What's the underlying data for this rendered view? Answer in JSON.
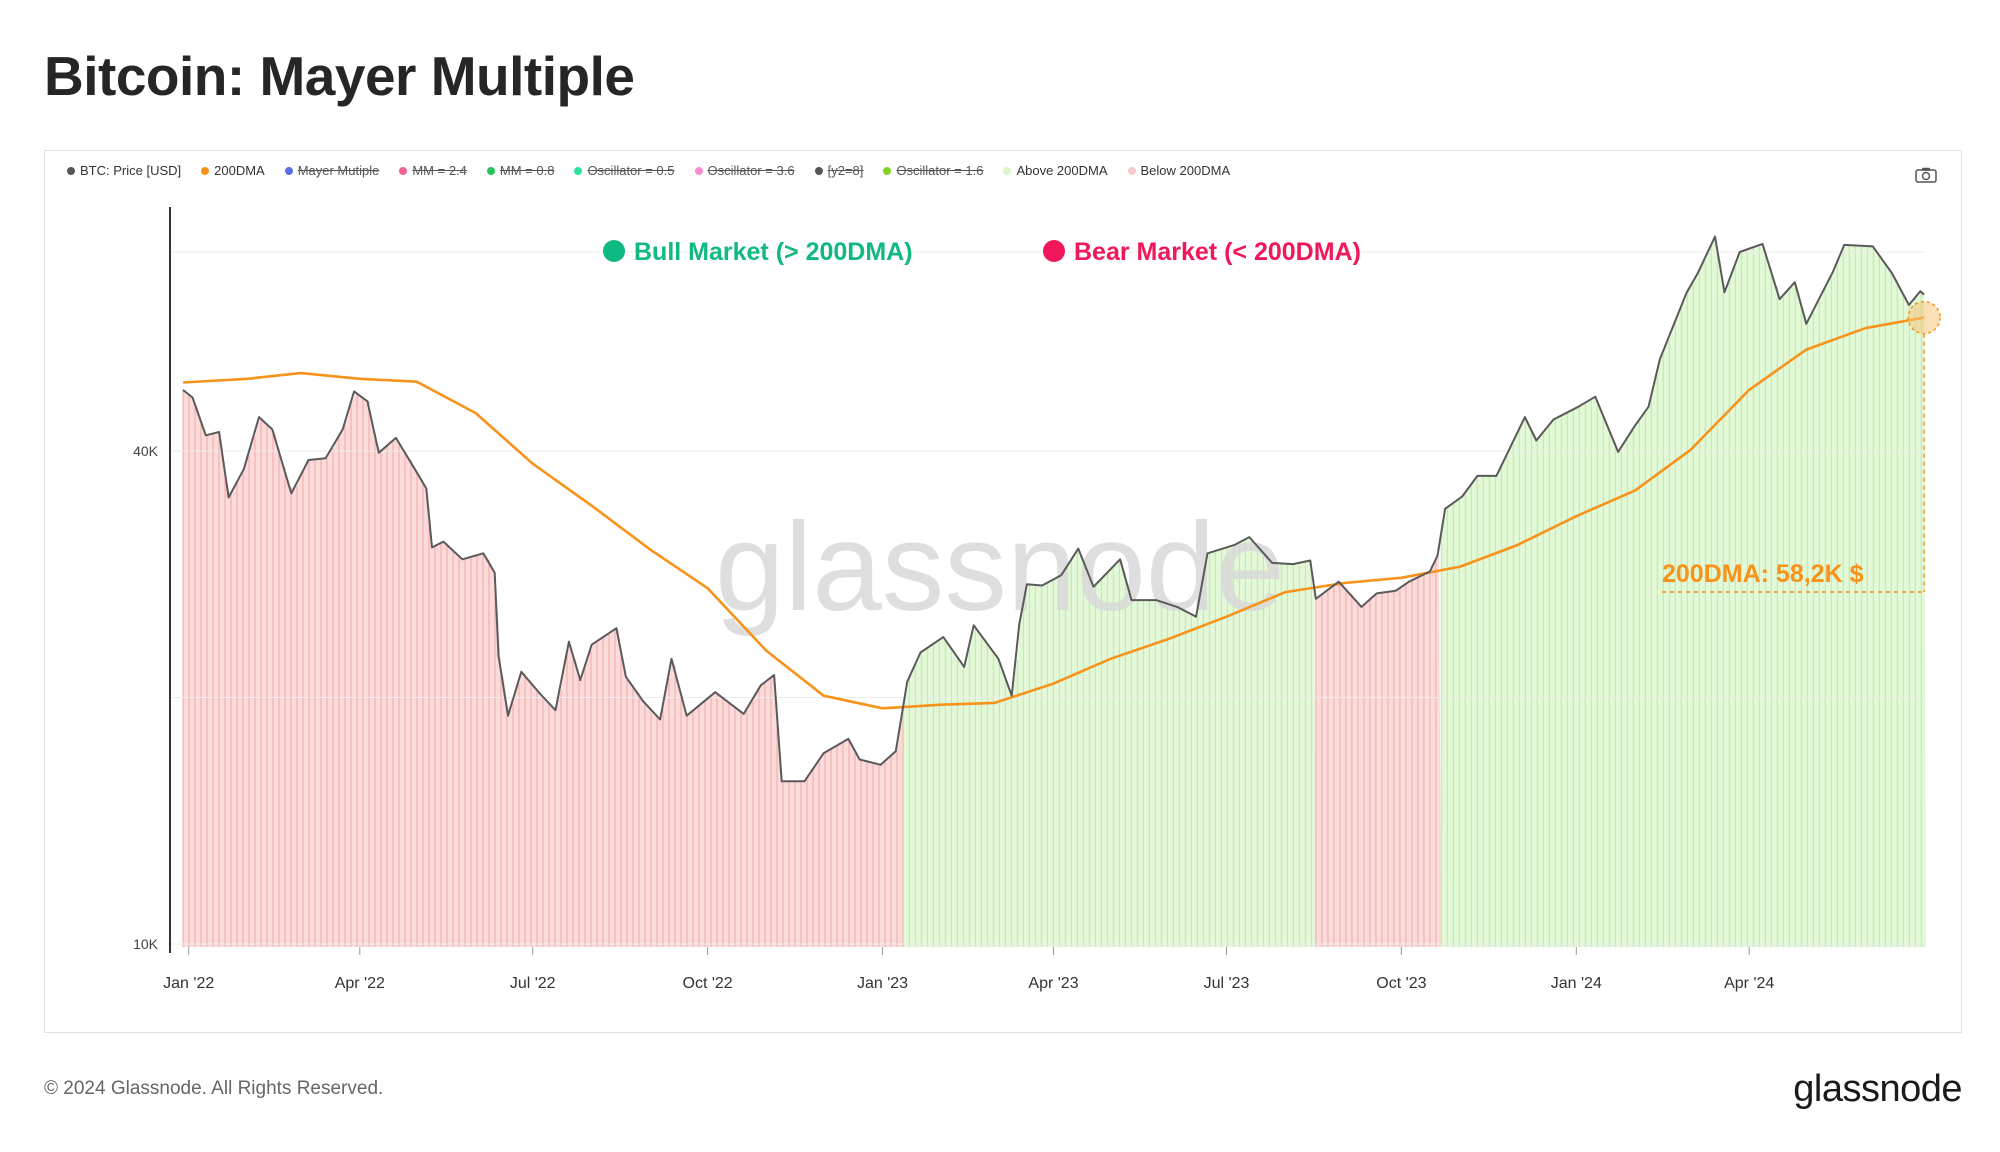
{
  "title": "Bitcoin: Mayer Multiple",
  "legend": [
    {
      "label": "BTC: Price [USD]",
      "color": "#555555",
      "enabled": true
    },
    {
      "label": "200DMA",
      "color": "#f7931a",
      "enabled": true
    },
    {
      "label": "Mayer Mutiple",
      "color": "#5b6ee1",
      "enabled": false
    },
    {
      "label": "MM = 2.4",
      "color": "#f06292",
      "enabled": false
    },
    {
      "label": "MM = 0.8",
      "color": "#22c55e",
      "enabled": false
    },
    {
      "label": "Oscillator = 0.5",
      "color": "#2ee59d",
      "enabled": false
    },
    {
      "label": "Oscillator = 3.6",
      "color": "#f48fd0",
      "enabled": false
    },
    {
      "label": "[y2=8]",
      "color": "#555555",
      "enabled": false
    },
    {
      "label": "Oscillator = 1.6",
      "color": "#7ed321",
      "enabled": false
    },
    {
      "label": "Above 200DMA",
      "color": "#d9f7c8",
      "enabled": true
    },
    {
      "label": "Below 200DMA",
      "color": "#f8c9c9",
      "enabled": true
    }
  ],
  "annotations": {
    "bull": {
      "label": "Bull Market (> 200DMA)",
      "color": "#10b981"
    },
    "bear": {
      "label": "Bear Market (< 200DMA)",
      "color": "#f0185a"
    },
    "dma_callout": {
      "label": "200DMA: 58,2K $",
      "color": "#f7931a"
    }
  },
  "watermark": "glassnode",
  "footer": {
    "copyright": "© 2024 Glassnode. All Rights Reserved.",
    "logo": "glassnode"
  },
  "colors": {
    "price": "#5a5a5a",
    "dma": "#f7931a",
    "above_fill": "#e2f8d6",
    "above_line": "#b8ecaa",
    "below_fill": "#fbdada",
    "below_line": "#f5a8a8"
  },
  "chart_data": {
    "type": "line",
    "x_axis": {
      "type": "date",
      "range": [
        "2021-12-29",
        "2024-07-03"
      ],
      "ticks": [
        {
          "date": "2022-01-01",
          "label": "Jan '22"
        },
        {
          "date": "2022-04-01",
          "label": "Apr '22"
        },
        {
          "date": "2022-07-01",
          "label": "Jul '22"
        },
        {
          "date": "2022-10-01",
          "label": "Oct '22"
        },
        {
          "date": "2023-01-01",
          "label": "Jan '23"
        },
        {
          "date": "2023-04-01",
          "label": "Apr '23"
        },
        {
          "date": "2023-07-01",
          "label": "Jul '23"
        },
        {
          "date": "2023-10-01",
          "label": "Oct '23"
        },
        {
          "date": "2024-01-01",
          "label": "Jan '24"
        },
        {
          "date": "2024-04-01",
          "label": "Apr '24"
        }
      ]
    },
    "y_axis": {
      "scale": "log",
      "range": [
        10000,
        80000
      ],
      "ticks": [
        {
          "value": 10000,
          "label": "10K"
        },
        {
          "value": 40000,
          "label": "40K"
        }
      ],
      "gridlines": [
        10000,
        20000,
        40000,
        70000
      ]
    },
    "series": [
      {
        "name": "BTC: Price [USD]",
        "points": [
          [
            "2021-12-29",
            47500
          ],
          [
            "2022-01-03",
            46500
          ],
          [
            "2022-01-10",
            41800
          ],
          [
            "2022-01-17",
            42200
          ],
          [
            "2022-01-22",
            35100
          ],
          [
            "2022-01-30",
            38000
          ],
          [
            "2022-02-07",
            44000
          ],
          [
            "2022-02-14",
            42500
          ],
          [
            "2022-02-24",
            35500
          ],
          [
            "2022-03-05",
            39000
          ],
          [
            "2022-03-14",
            39200
          ],
          [
            "2022-03-23",
            42500
          ],
          [
            "2022-03-29",
            47300
          ],
          [
            "2022-04-05",
            46000
          ],
          [
            "2022-04-11",
            39800
          ],
          [
            "2022-04-20",
            41500
          ],
          [
            "2022-04-30",
            38000
          ],
          [
            "2022-05-06",
            36000
          ],
          [
            "2022-05-09",
            30500
          ],
          [
            "2022-05-15",
            31000
          ],
          [
            "2022-05-25",
            29500
          ],
          [
            "2022-06-05",
            30000
          ],
          [
            "2022-06-11",
            28400
          ],
          [
            "2022-06-13",
            22500
          ],
          [
            "2022-06-18",
            19000
          ],
          [
            "2022-06-25",
            21500
          ],
          [
            "2022-07-05",
            20200
          ],
          [
            "2022-07-13",
            19300
          ],
          [
            "2022-07-20",
            23400
          ],
          [
            "2022-07-26",
            21000
          ],
          [
            "2022-08-01",
            23200
          ],
          [
            "2022-08-14",
            24300
          ],
          [
            "2022-08-19",
            21200
          ],
          [
            "2022-08-28",
            19800
          ],
          [
            "2022-09-06",
            18800
          ],
          [
            "2022-09-12",
            22300
          ],
          [
            "2022-09-20",
            19000
          ],
          [
            "2022-10-05",
            20300
          ],
          [
            "2022-10-20",
            19100
          ],
          [
            "2022-10-29",
            20700
          ],
          [
            "2022-11-05",
            21300
          ],
          [
            "2022-11-09",
            15800
          ],
          [
            "2022-11-21",
            15800
          ],
          [
            "2022-12-01",
            17100
          ],
          [
            "2022-12-14",
            17800
          ],
          [
            "2022-12-20",
            16800
          ],
          [
            "2022-12-31",
            16550
          ],
          [
            "2023-01-08",
            17200
          ],
          [
            "2023-01-14",
            20900
          ],
          [
            "2023-01-21",
            22700
          ],
          [
            "2023-02-02",
            23700
          ],
          [
            "2023-02-13",
            21800
          ],
          [
            "2023-02-18",
            24500
          ],
          [
            "2023-03-03",
            22300
          ],
          [
            "2023-03-10",
            20100
          ],
          [
            "2023-03-14",
            24600
          ],
          [
            "2023-03-18",
            27500
          ],
          [
            "2023-03-26",
            27400
          ],
          [
            "2023-04-05",
            28200
          ],
          [
            "2023-04-14",
            30400
          ],
          [
            "2023-04-22",
            27300
          ],
          [
            "2023-05-06",
            29500
          ],
          [
            "2023-05-12",
            26300
          ],
          [
            "2023-05-25",
            26300
          ],
          [
            "2023-06-05",
            25800
          ],
          [
            "2023-06-15",
            25100
          ],
          [
            "2023-06-21",
            30000
          ],
          [
            "2023-07-05",
            30700
          ],
          [
            "2023-07-13",
            31400
          ],
          [
            "2023-07-25",
            29200
          ],
          [
            "2023-08-05",
            29100
          ],
          [
            "2023-08-14",
            29400
          ],
          [
            "2023-08-17",
            26400
          ],
          [
            "2023-08-29",
            27700
          ],
          [
            "2023-09-10",
            25800
          ],
          [
            "2023-09-18",
            26800
          ],
          [
            "2023-09-28",
            27000
          ],
          [
            "2023-10-05",
            27700
          ],
          [
            "2023-10-16",
            28500
          ],
          [
            "2023-10-20",
            29800
          ],
          [
            "2023-10-24",
            34000
          ],
          [
            "2023-11-02",
            35200
          ],
          [
            "2023-11-10",
            37300
          ],
          [
            "2023-11-20",
            37300
          ],
          [
            "2023-12-05",
            44000
          ],
          [
            "2023-12-11",
            41200
          ],
          [
            "2023-12-20",
            43700
          ],
          [
            "2024-01-02",
            45300
          ],
          [
            "2024-01-11",
            46600
          ],
          [
            "2024-01-23",
            39900
          ],
          [
            "2024-02-01",
            43000
          ],
          [
            "2024-02-08",
            45300
          ],
          [
            "2024-02-14",
            51800
          ],
          [
            "2024-02-28",
            62400
          ],
          [
            "2024-03-05",
            66000
          ],
          [
            "2024-03-14",
            73100
          ],
          [
            "2024-03-19",
            62500
          ],
          [
            "2024-03-27",
            70000
          ],
          [
            "2024-04-08",
            71600
          ],
          [
            "2024-04-17",
            61300
          ],
          [
            "2024-04-25",
            64300
          ],
          [
            "2024-05-01",
            57200
          ],
          [
            "2024-05-15",
            66200
          ],
          [
            "2024-05-21",
            71400
          ],
          [
            "2024-06-05",
            71100
          ],
          [
            "2024-06-15",
            66000
          ],
          [
            "2024-06-24",
            60300
          ],
          [
            "2024-06-30",
            62700
          ],
          [
            "2024-07-02",
            62100
          ]
        ]
      },
      {
        "name": "200DMA",
        "points": [
          [
            "2021-12-29",
            48500
          ],
          [
            "2022-02-01",
            49000
          ],
          [
            "2022-03-01",
            49800
          ],
          [
            "2022-04-01",
            49000
          ],
          [
            "2022-05-01",
            48600
          ],
          [
            "2022-06-01",
            44500
          ],
          [
            "2022-07-01",
            38600
          ],
          [
            "2022-08-01",
            34300
          ],
          [
            "2022-09-01",
            30300
          ],
          [
            "2022-10-01",
            27200
          ],
          [
            "2022-11-01",
            22800
          ],
          [
            "2022-12-01",
            20100
          ],
          [
            "2023-01-01",
            19400
          ],
          [
            "2023-02-01",
            19600
          ],
          [
            "2023-03-01",
            19700
          ],
          [
            "2023-04-01",
            20800
          ],
          [
            "2023-05-01",
            22300
          ],
          [
            "2023-06-01",
            23600
          ],
          [
            "2023-07-01",
            25100
          ],
          [
            "2023-08-01",
            26900
          ],
          [
            "2023-09-01",
            27600
          ],
          [
            "2023-10-01",
            28000
          ],
          [
            "2023-11-01",
            28900
          ],
          [
            "2023-12-01",
            30700
          ],
          [
            "2024-01-01",
            33300
          ],
          [
            "2024-02-01",
            35800
          ],
          [
            "2024-03-01",
            40100
          ],
          [
            "2024-04-01",
            47500
          ],
          [
            "2024-05-01",
            53200
          ],
          [
            "2024-06-01",
            56500
          ],
          [
            "2024-07-02",
            58200
          ]
        ]
      }
    ],
    "regions": [
      {
        "name": "Below 200DMA",
        "from": "2021-12-29",
        "to": "2023-01-12"
      },
      {
        "name": "Above 200DMA",
        "from": "2023-01-12",
        "to": "2023-08-17"
      },
      {
        "name": "Below 200DMA",
        "from": "2023-08-17",
        "to": "2023-10-22"
      },
      {
        "name": "Above 200DMA",
        "from": "2023-10-22",
        "to": "2024-07-03"
      }
    ]
  }
}
